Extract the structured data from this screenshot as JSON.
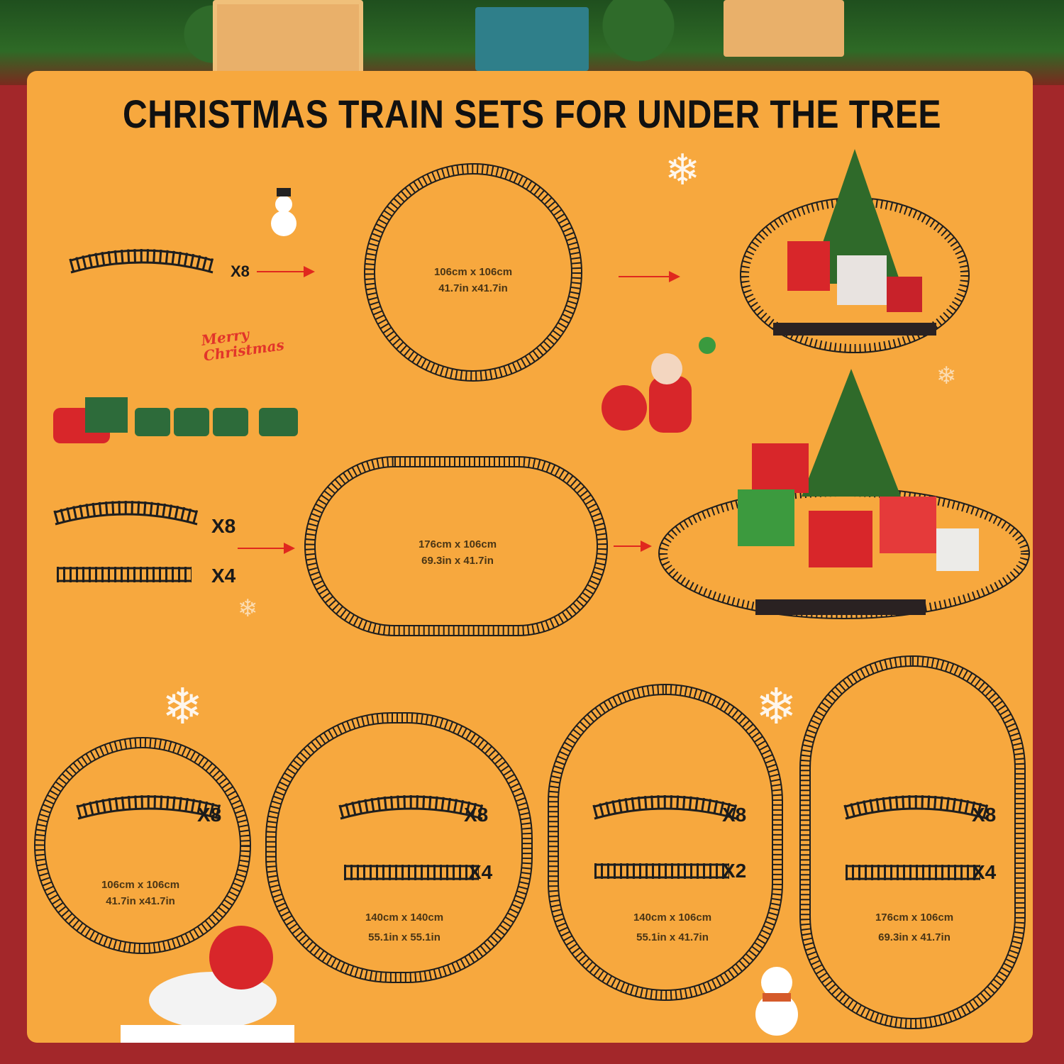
{
  "title": "CHRISTMAS TRAIN SETS FOR UNDER THE TREE",
  "colors": {
    "background": "#a3272a",
    "panel": "#f7a83e",
    "track": "#1e1e1e",
    "arrow": "#e0281e"
  },
  "decoration_text": "Merry Christmas",
  "top_section": {
    "pieces": [
      {
        "type": "curved",
        "count": "X8"
      }
    ],
    "dimensions": [
      "106cm x 106cm",
      "41.7in x41.7in"
    ]
  },
  "middle_section": {
    "pieces": [
      {
        "type": "curved",
        "count": "X8"
      },
      {
        "type": "straight",
        "count": "X4"
      }
    ],
    "dimensions": [
      "176cm x 106cm",
      "69.3in x 41.7in"
    ]
  },
  "layouts": [
    {
      "pieces": [
        {
          "type": "curved",
          "count": "X8"
        }
      ],
      "dimensions": [
        "106cm x 106cm",
        "41.7in x41.7in"
      ]
    },
    {
      "pieces": [
        {
          "type": "curved",
          "count": "X8"
        },
        {
          "type": "straight",
          "count": "X4"
        }
      ],
      "dimensions": [
        "140cm x 140cm",
        "55.1in x 55.1in"
      ]
    },
    {
      "pieces": [
        {
          "type": "curved",
          "count": "X8"
        },
        {
          "type": "straight",
          "count": "X2"
        }
      ],
      "dimensions": [
        "140cm x 106cm",
        "55.1in x 41.7in"
      ]
    },
    {
      "pieces": [
        {
          "type": "curved",
          "count": "X8"
        },
        {
          "type": "straight",
          "count": "X4"
        }
      ],
      "dimensions": [
        "176cm x 106cm",
        "69.3in x 41.7in"
      ]
    }
  ]
}
